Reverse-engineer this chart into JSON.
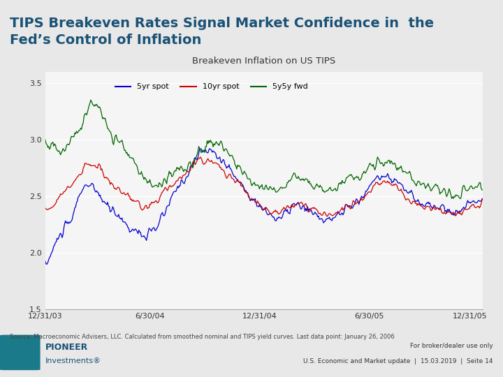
{
  "title": "TIPS Breakeven Rates Signal Market Confidence in  the\nFed’s Control of Inflation",
  "chart_title": "Breakeven Inflation on US TIPS",
  "source_text": "Source: Macroeconomic Advisers, LLC. Calculated from smoothed nominal and TIPS yield curves. Last data point: January 26, 2006",
  "footer_left": "PIONEER\nInvestments®",
  "footer_right_top": "For broker/dealer use only",
  "footer_right_bottom": "U.S. Economic and Market update  |  15.03.2019  |  Seite 14",
  "legend": [
    "5yr spot",
    "10yr spot",
    "5y5y fwd"
  ],
  "line_colors": [
    "#0000cc",
    "#cc0000",
    "#006600"
  ],
  "ylim": [
    1.5,
    3.6
  ],
  "yticks": [
    1.5,
    2.0,
    2.5,
    3.0,
    3.5
  ],
  "xtick_labels": [
    "12/31/03",
    "6/30/04",
    "12/31/04",
    "6/30/05",
    "12/31/05"
  ],
  "bg_color": "#f0f0f0",
  "plot_bg": "#f5f5f5",
  "title_color": "#1a5276",
  "n_points": 520
}
